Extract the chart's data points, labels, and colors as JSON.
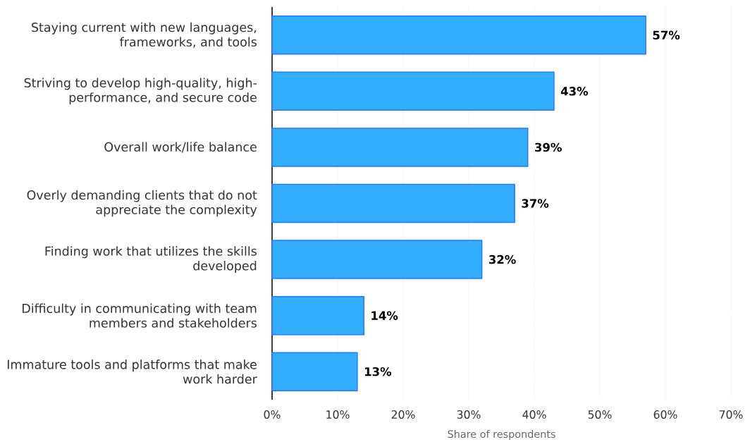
{
  "chart_data": {
    "type": "bar",
    "orientation": "horizontal",
    "xlabel": "Share of respondents",
    "categories": [
      "Staying current with new languages, frameworks, and tools",
      "Striving to develop high-quality, high-performance, and secure code",
      "Overall work/life balance",
      "Overly demanding clients that do not appreciate the complexity",
      "Finding work that utilizes the skills developed",
      "Difficulty in communicating with team members and stakeholders",
      "Immature tools and platforms that make work harder"
    ],
    "values": [
      57,
      43,
      39,
      37,
      32,
      14,
      13
    ],
    "color": "#33adff",
    "value_labels": [
      "57%",
      "43%",
      "39%",
      "37%",
      "32%",
      "14%",
      "13%"
    ],
    "xlim": [
      0,
      70
    ],
    "xticks": [
      {
        "value": 0,
        "label": "0%"
      },
      {
        "value": 10,
        "label": "10%"
      },
      {
        "value": 20,
        "label": "20%"
      },
      {
        "value": 30,
        "label": "30%"
      },
      {
        "value": 40,
        "label": "40%"
      },
      {
        "value": 50,
        "label": "50%"
      },
      {
        "value": 60,
        "label": "60%"
      },
      {
        "value": 70,
        "label": "70%"
      }
    ],
    "grid": "x"
  }
}
